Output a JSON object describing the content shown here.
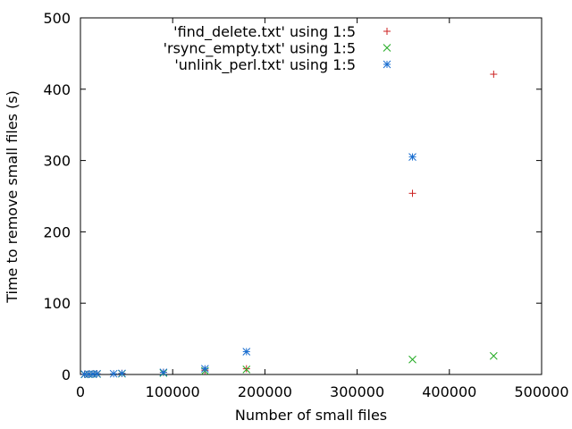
{
  "chart_data": {
    "type": "scatter",
    "title": "",
    "xlabel": "Number of small files",
    "ylabel": "Time to remove small files (s)",
    "xlim": [
      0,
      500000
    ],
    "ylim": [
      0,
      500
    ],
    "xticks": [
      0,
      100000,
      200000,
      300000,
      400000,
      500000
    ],
    "yticks": [
      0,
      100,
      200,
      300,
      400,
      500
    ],
    "xtick_labels": [
      "0",
      "100000",
      "200000",
      "300000",
      "400000",
      "500000"
    ],
    "ytick_labels": [
      "0",
      "100",
      "200",
      "300",
      "400",
      "500"
    ],
    "grid": false,
    "legend_position": "top-right",
    "series": [
      {
        "name": "'find_delete.txt' using 1:5",
        "marker": "plus",
        "color": "#cc2222",
        "points": [
          [
            4500,
            0.5
          ],
          [
            9000,
            0.6
          ],
          [
            13500,
            0.8
          ],
          [
            18000,
            1
          ],
          [
            45000,
            1.5
          ],
          [
            90000,
            3
          ],
          [
            135000,
            6
          ],
          [
            180000,
            8
          ],
          [
            360000,
            254
          ],
          [
            448000,
            421
          ]
        ]
      },
      {
        "name": "'rsync_empty.txt' using 1:5",
        "marker": "cross",
        "color": "#22aa22",
        "points": [
          [
            4500,
            0.2
          ],
          [
            9000,
            0.3
          ],
          [
            13500,
            0.5
          ],
          [
            18000,
            0.6
          ],
          [
            45000,
            1
          ],
          [
            90000,
            2
          ],
          [
            135000,
            5
          ],
          [
            180000,
            7
          ],
          [
            360000,
            21
          ],
          [
            448000,
            26
          ]
        ]
      },
      {
        "name": "'unlink_perl.txt' using 1:5",
        "marker": "star",
        "color": "#1a6ed0",
        "points": [
          [
            4500,
            0.3
          ],
          [
            9000,
            0.4
          ],
          [
            13500,
            0.6
          ],
          [
            18000,
            0.9
          ],
          [
            36000,
            1
          ],
          [
            45000,
            1.5
          ],
          [
            90000,
            3
          ],
          [
            135000,
            8
          ],
          [
            180000,
            32
          ],
          [
            360000,
            305
          ]
        ]
      }
    ]
  }
}
